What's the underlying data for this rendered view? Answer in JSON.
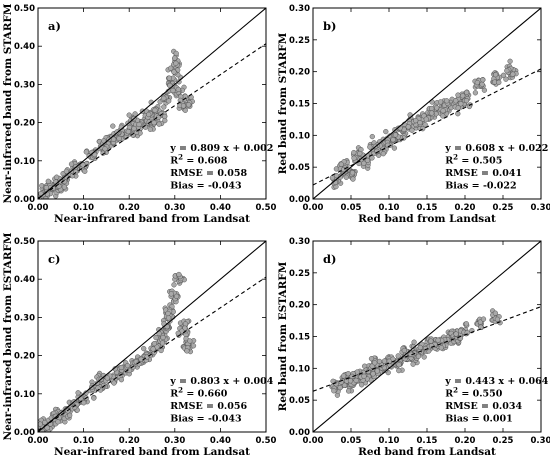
{
  "chart_data": [
    {
      "type": "scatter",
      "panel_label": "a)",
      "xlabel": "Near-infrared band from Landsat",
      "ylabel": "Near-infrared band from STARFM",
      "xlim": [
        0,
        0.5
      ],
      "ylim": [
        0,
        0.5
      ],
      "xticks": [
        "0.00",
        "0.10",
        "0.20",
        "0.30",
        "0.40",
        "0.50"
      ],
      "yticks": [
        "0.00",
        "0.10",
        "0.20",
        "0.30",
        "0.40",
        "0.50"
      ],
      "one_to_one_line": true,
      "fit": {
        "slope": 0.809,
        "intercept": 0.002
      },
      "stats": [
        "y = 0.809 x + 0.002",
        "R2 = 0.608",
        "RMSE = 0.058",
        "Bias = -0.043"
      ],
      "points": [
        [
          0.01,
          0.01
        ],
        [
          0.02,
          0.02
        ],
        [
          0.03,
          0.025
        ],
        [
          0.04,
          0.035
        ],
        [
          0.05,
          0.05
        ],
        [
          0.06,
          0.06
        ],
        [
          0.08,
          0.08
        ],
        [
          0.1,
          0.09
        ],
        [
          0.12,
          0.12
        ],
        [
          0.14,
          0.13
        ],
        [
          0.15,
          0.15
        ],
        [
          0.17,
          0.16
        ],
        [
          0.18,
          0.18
        ],
        [
          0.2,
          0.17
        ],
        [
          0.21,
          0.2
        ],
        [
          0.22,
          0.19
        ],
        [
          0.24,
          0.21
        ],
        [
          0.25,
          0.2
        ],
        [
          0.26,
          0.23
        ],
        [
          0.27,
          0.22
        ],
        [
          0.28,
          0.26
        ],
        [
          0.29,
          0.3
        ],
        [
          0.3,
          0.33
        ],
        [
          0.3,
          0.36
        ],
        [
          0.31,
          0.28
        ],
        [
          0.32,
          0.24
        ],
        [
          0.33,
          0.25
        ]
      ]
    },
    {
      "type": "scatter",
      "panel_label": "b)",
      "xlabel": "Red band from Landsat",
      "ylabel": "Red band from STARFM",
      "xlim": [
        0,
        0.3
      ],
      "ylim": [
        0,
        0.3
      ],
      "xticks": [
        "0.00",
        "0.05",
        "0.10",
        "0.15",
        "0.20",
        "0.25",
        "0.30"
      ],
      "yticks": [
        "0.00",
        "0.05",
        "0.10",
        "0.15",
        "0.20",
        "0.25",
        "0.30"
      ],
      "one_to_one_line": true,
      "fit": {
        "slope": 0.608,
        "intercept": 0.022
      },
      "stats": [
        "y = 0.608 x + 0.022",
        "R2 = 0.505",
        "RMSE = 0.041",
        "Bias = -0.022"
      ],
      "points": [
        [
          0.03,
          0.03
        ],
        [
          0.04,
          0.05
        ],
        [
          0.05,
          0.04
        ],
        [
          0.06,
          0.07
        ],
        [
          0.07,
          0.06
        ],
        [
          0.08,
          0.08
        ],
        [
          0.09,
          0.08
        ],
        [
          0.1,
          0.09
        ],
        [
          0.11,
          0.1
        ],
        [
          0.12,
          0.11
        ],
        [
          0.13,
          0.12
        ],
        [
          0.14,
          0.12
        ],
        [
          0.15,
          0.13
        ],
        [
          0.16,
          0.14
        ],
        [
          0.17,
          0.14
        ],
        [
          0.18,
          0.15
        ],
        [
          0.19,
          0.15
        ],
        [
          0.2,
          0.16
        ],
        [
          0.22,
          0.18
        ],
        [
          0.24,
          0.19
        ],
        [
          0.26,
          0.2
        ]
      ]
    },
    {
      "type": "scatter",
      "panel_label": "c)",
      "xlabel": "Near-infrared band from Landsat",
      "ylabel": "Near-infrared band from ESTARFM",
      "xlim": [
        0,
        0.5
      ],
      "ylim": [
        0,
        0.5
      ],
      "xticks": [
        "0.00",
        "0.10",
        "0.20",
        "0.30",
        "0.40",
        "0.50"
      ],
      "yticks": [
        "0.00",
        "0.10",
        "0.20",
        "0.30",
        "0.40",
        "0.50"
      ],
      "one_to_one_line": true,
      "fit": {
        "slope": 0.803,
        "intercept": 0.004
      },
      "stats": [
        "y = 0.803 x + 0.004",
        "R2 = 0.660",
        "RMSE = 0.056",
        "Bias = -0.043"
      ],
      "points": [
        [
          0.01,
          0.01
        ],
        [
          0.02,
          0.02
        ],
        [
          0.04,
          0.04
        ],
        [
          0.06,
          0.05
        ],
        [
          0.08,
          0.07
        ],
        [
          0.1,
          0.09
        ],
        [
          0.12,
          0.11
        ],
        [
          0.14,
          0.13
        ],
        [
          0.16,
          0.14
        ],
        [
          0.18,
          0.16
        ],
        [
          0.2,
          0.17
        ],
        [
          0.22,
          0.19
        ],
        [
          0.24,
          0.2
        ],
        [
          0.26,
          0.22
        ],
        [
          0.27,
          0.24
        ],
        [
          0.28,
          0.27
        ],
        [
          0.29,
          0.31
        ],
        [
          0.3,
          0.35
        ],
        [
          0.31,
          0.4
        ],
        [
          0.32,
          0.27
        ],
        [
          0.33,
          0.23
        ]
      ]
    },
    {
      "type": "scatter",
      "panel_label": "d)",
      "xlabel": "Red band from Landsat",
      "ylabel": "Red band from ESTARFM",
      "xlim": [
        0,
        0.3
      ],
      "ylim": [
        0,
        0.3
      ],
      "xticks": [
        "0.00",
        "0.05",
        "0.10",
        "0.15",
        "0.20",
        "0.25",
        "0.30"
      ],
      "yticks": [
        "0.00",
        "0.05",
        "0.10",
        "0.15",
        "0.20",
        "0.25",
        "0.30"
      ],
      "one_to_one_line": true,
      "fit": {
        "slope": 0.443,
        "intercept": 0.064
      },
      "stats": [
        "y = 0.443 x + 0.064",
        "R2 = 0.550",
        "RMSE = 0.034",
        "Bias =  0.001"
      ],
      "points": [
        [
          0.03,
          0.07
        ],
        [
          0.04,
          0.08
        ],
        [
          0.05,
          0.08
        ],
        [
          0.06,
          0.09
        ],
        [
          0.07,
          0.09
        ],
        [
          0.08,
          0.1
        ],
        [
          0.09,
          0.1
        ],
        [
          0.1,
          0.11
        ],
        [
          0.11,
          0.11
        ],
        [
          0.12,
          0.12
        ],
        [
          0.13,
          0.12
        ],
        [
          0.14,
          0.13
        ],
        [
          0.15,
          0.13
        ],
        [
          0.16,
          0.14
        ],
        [
          0.17,
          0.14
        ],
        [
          0.18,
          0.15
        ],
        [
          0.19,
          0.15
        ],
        [
          0.2,
          0.16
        ],
        [
          0.22,
          0.17
        ],
        [
          0.24,
          0.18
        ]
      ]
    }
  ]
}
